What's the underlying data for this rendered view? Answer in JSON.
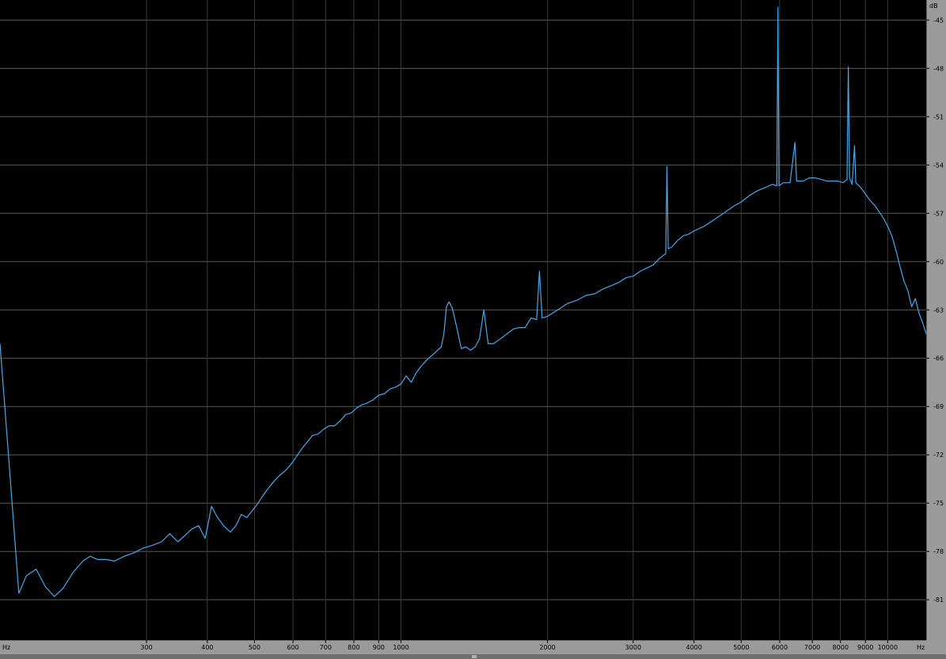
{
  "chart_data": {
    "type": "line",
    "y_unit": "dB",
    "x_unit": "Hz",
    "x_scale": "log",
    "xlim": [
      150,
      12000
    ],
    "ylim": [
      -83.5,
      -44
    ],
    "grid": true,
    "y_ticks": [
      -45,
      -48,
      -51,
      -54,
      -57,
      -60,
      -63,
      -66,
      -69,
      -72,
      -75,
      -78,
      -81
    ],
    "y_tick_labels": [
      "-45",
      "-48",
      "-51",
      "-54",
      "-57",
      "-60",
      "-63",
      "-66",
      "-69",
      "-72",
      "-75",
      "-78",
      "-81"
    ],
    "x_ticks": [
      300,
      400,
      500,
      600,
      700,
      800,
      900,
      1000,
      2000,
      3000,
      4000,
      5000,
      6000,
      7000,
      8000,
      9000,
      10000
    ],
    "x_tick_labels": [
      "300",
      "400",
      "500",
      "600",
      "700",
      "800",
      "900",
      "1000",
      "2000",
      "3000",
      "4000",
      "5000",
      "6000",
      "7000",
      "8000",
      "9000",
      "10000"
    ],
    "series": [
      {
        "color": "#4aa8e8",
        "points": [
          [
            150,
            -65.1
          ],
          [
            157,
            -73
          ],
          [
            164,
            -80.6
          ],
          [
            170,
            -79.5
          ],
          [
            178,
            -79.1
          ],
          [
            186,
            -80.2
          ],
          [
            194,
            -80.8
          ],
          [
            202,
            -80.3
          ],
          [
            212,
            -79.3
          ],
          [
            222,
            -78.6
          ],
          [
            230,
            -78.3
          ],
          [
            238,
            -78.5
          ],
          [
            248,
            -78.5
          ],
          [
            258,
            -78.6
          ],
          [
            270,
            -78.3
          ],
          [
            282,
            -78.1
          ],
          [
            295,
            -77.8
          ],
          [
            310,
            -77.6
          ],
          [
            322,
            -77.4
          ],
          [
            335,
            -76.9
          ],
          [
            348,
            -77.4
          ],
          [
            360,
            -77
          ],
          [
            372,
            -76.6
          ],
          [
            384,
            -76.4
          ],
          [
            396,
            -77.2
          ],
          [
            408,
            -75.2
          ],
          [
            420,
            -75.9
          ],
          [
            432,
            -76.4
          ],
          [
            446,
            -76.8
          ],
          [
            458,
            -76.4
          ],
          [
            470,
            -75.7
          ],
          [
            482,
            -75.9
          ],
          [
            494,
            -75.5
          ],
          [
            506,
            -75.1
          ],
          [
            516,
            -74.7
          ],
          [
            530,
            -74.2
          ],
          [
            546,
            -73.7
          ],
          [
            562,
            -73.3
          ],
          [
            578,
            -73
          ],
          [
            594,
            -72.6
          ],
          [
            610,
            -72.1
          ],
          [
            626,
            -71.6
          ],
          [
            642,
            -71.2
          ],
          [
            658,
            -70.8
          ],
          [
            676,
            -70.7
          ],
          [
            694,
            -70.4
          ],
          [
            712,
            -70.2
          ],
          [
            730,
            -70.2
          ],
          [
            750,
            -69.9
          ],
          [
            770,
            -69.5
          ],
          [
            790,
            -69.4
          ],
          [
            810,
            -69.1
          ],
          [
            830,
            -68.9
          ],
          [
            850,
            -68.8
          ],
          [
            875,
            -68.6
          ],
          [
            900,
            -68.3
          ],
          [
            925,
            -68.2
          ],
          [
            950,
            -67.9
          ],
          [
            975,
            -67.8
          ],
          [
            1000,
            -67.6
          ],
          [
            1025,
            -67.1
          ],
          [
            1050,
            -67.5
          ],
          [
            1075,
            -66.9
          ],
          [
            1100,
            -66.5
          ],
          [
            1130,
            -66.1
          ],
          [
            1160,
            -65.8
          ],
          [
            1190,
            -65.5
          ],
          [
            1210,
            -65.3
          ],
          [
            1225,
            -64.5
          ],
          [
            1240,
            -62.8
          ],
          [
            1255,
            -62.5
          ],
          [
            1275,
            -62.9
          ],
          [
            1300,
            -64
          ],
          [
            1330,
            -65.4
          ],
          [
            1360,
            -65.3
          ],
          [
            1390,
            -65.5
          ],
          [
            1420,
            -65.3
          ],
          [
            1450,
            -64.8
          ],
          [
            1480,
            -63
          ],
          [
            1510,
            -65.1
          ],
          [
            1550,
            -65.1
          ],
          [
            1600,
            -64.8
          ],
          [
            1650,
            -64.5
          ],
          [
            1700,
            -64.2
          ],
          [
            1750,
            -64.1
          ],
          [
            1800,
            -64.1
          ],
          [
            1850,
            -63.5
          ],
          [
            1900,
            -63.6
          ],
          [
            1925,
            -60.6
          ],
          [
            1950,
            -63.5
          ],
          [
            2000,
            -63.4
          ],
          [
            2100,
            -63
          ],
          [
            2200,
            -62.6
          ],
          [
            2300,
            -62.4
          ],
          [
            2400,
            -62.1
          ],
          [
            2500,
            -62
          ],
          [
            2600,
            -61.7
          ],
          [
            2700,
            -61.5
          ],
          [
            2800,
            -61.3
          ],
          [
            2900,
            -61
          ],
          [
            3000,
            -60.9
          ],
          [
            3100,
            -60.6
          ],
          [
            3200,
            -60.4
          ],
          [
            3300,
            -60.2
          ],
          [
            3400,
            -59.8
          ],
          [
            3500,
            -59.5
          ],
          [
            3520,
            -54.1
          ],
          [
            3540,
            -59.2
          ],
          [
            3600,
            -59.1
          ],
          [
            3700,
            -58.7
          ],
          [
            3800,
            -58.4
          ],
          [
            3900,
            -58.3
          ],
          [
            4000,
            -58.1
          ],
          [
            4200,
            -57.8
          ],
          [
            4400,
            -57.4
          ],
          [
            4600,
            -57
          ],
          [
            4800,
            -56.6
          ],
          [
            5000,
            -56.3
          ],
          [
            5200,
            -55.9
          ],
          [
            5400,
            -55.6
          ],
          [
            5600,
            -55.4
          ],
          [
            5800,
            -55.2
          ],
          [
            5920,
            -55.3
          ],
          [
            5950,
            -44.2
          ],
          [
            5980,
            -55.3
          ],
          [
            6100,
            -55.1
          ],
          [
            6300,
            -55.1
          ],
          [
            6450,
            -52.6
          ],
          [
            6500,
            -55
          ],
          [
            6700,
            -55
          ],
          [
            6900,
            -54.8
          ],
          [
            7100,
            -54.8
          ],
          [
            7300,
            -54.9
          ],
          [
            7500,
            -55
          ],
          [
            7700,
            -55
          ],
          [
            7900,
            -55
          ],
          [
            8100,
            -55.1
          ],
          [
            8250,
            -54.9
          ],
          [
            8300,
            -47.9
          ],
          [
            8350,
            -54.8
          ],
          [
            8450,
            -55.2
          ],
          [
            8550,
            -52.8
          ],
          [
            8600,
            -55.1
          ],
          [
            8800,
            -55.4
          ],
          [
            9000,
            -55.8
          ],
          [
            9200,
            -56.2
          ],
          [
            9400,
            -56.5
          ],
          [
            9600,
            -56.9
          ],
          [
            9800,
            -57.3
          ],
          [
            10000,
            -57.8
          ],
          [
            10200,
            -58.4
          ],
          [
            10400,
            -59.3
          ],
          [
            10600,
            -60.3
          ],
          [
            10800,
            -61.2
          ],
          [
            11000,
            -61.8
          ],
          [
            11200,
            -62.8
          ],
          [
            11400,
            -62.3
          ],
          [
            11600,
            -63.2
          ],
          [
            11800,
            -63.8
          ],
          [
            12000,
            -64.5
          ]
        ]
      }
    ]
  }
}
